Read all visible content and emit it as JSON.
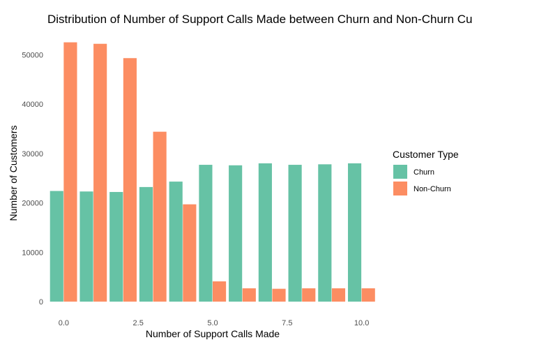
{
  "chart_data": {
    "type": "bar",
    "title": "Distribution of Number of Support Calls Made between Churn and Non-Churn Cu",
    "xlabel": "Number of Support Calls Made",
    "ylabel": "Number of Customers",
    "x": [
      0,
      1,
      2,
      3,
      4,
      5,
      6,
      7,
      8,
      9,
      10
    ],
    "x_ticks": [
      0,
      2.5,
      5,
      7.5,
      10
    ],
    "x_tick_labels": [
      "0.0",
      "2.5",
      "5.0",
      "7.5",
      "10.0"
    ],
    "y_ticks": [
      0,
      10000,
      20000,
      30000,
      40000,
      50000
    ],
    "y_tick_labels": [
      "0",
      "10000",
      "20000",
      "30000",
      "40000",
      "50000"
    ],
    "ylim": [
      0,
      54000
    ],
    "xlim": [
      -0.5,
      10.5
    ],
    "legend": {
      "title": "Customer Type",
      "placement": "right"
    },
    "grid": false,
    "series": [
      {
        "name": "Churn",
        "color": "#66c2a5",
        "values": [
          22400,
          22300,
          22200,
          23200,
          24300,
          27700,
          27600,
          28000,
          27700,
          27800,
          28000
        ]
      },
      {
        "name": "Non-Churn",
        "color": "#fc8d62",
        "values": [
          52500,
          52200,
          49300,
          34400,
          19700,
          4100,
          2700,
          2600,
          2700,
          2700,
          2700
        ]
      }
    ]
  }
}
